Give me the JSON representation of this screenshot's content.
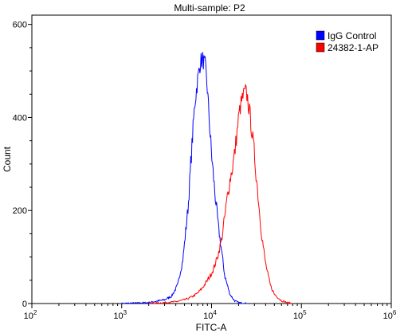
{
  "chart_data": {
    "type": "line",
    "title": "Multi-sample: P2",
    "xlabel": "FITC-A",
    "ylabel": "Count",
    "x_scale": "log",
    "xlim": [
      100,
      1000000
    ],
    "ylim": [
      0,
      620
    ],
    "x_ticks": [
      {
        "base": "10",
        "exp": "2",
        "value": 100
      },
      {
        "base": "10",
        "exp": "3",
        "value": 1000
      },
      {
        "base": "10",
        "exp": "4",
        "value": 10000
      },
      {
        "base": "10",
        "exp": "5",
        "value": 100000
      },
      {
        "base": "10",
        "exp": "6",
        "value": 1000000
      }
    ],
    "y_ticks": [
      {
        "label": "0",
        "value": 0
      },
      {
        "label": "200",
        "value": 200
      },
      {
        "label": "400",
        "value": 400
      },
      {
        "label": "600",
        "value": 600
      }
    ],
    "grid": false,
    "legend": "top-right",
    "series": [
      {
        "name": "IgG Control",
        "color": "#0000ff",
        "x": [
          1000,
          2000,
          3000,
          3600,
          4200,
          4800,
          5500,
          6000,
          6500,
          7000,
          7500,
          8000,
          8500,
          9000,
          9600,
          10200,
          11000,
          12000,
          13000,
          14000,
          16000,
          18000,
          20000,
          25000
        ],
        "y": [
          0,
          2,
          8,
          16,
          40,
          95,
          210,
          330,
          430,
          480,
          520,
          525,
          510,
          460,
          370,
          300,
          230,
          160,
          110,
          60,
          20,
          6,
          2,
          0
        ]
      },
      {
        "name": "24382-1-AP",
        "color": "#ff0000",
        "x": [
          2000,
          3000,
          4000,
          5000,
          6000,
          7000,
          8000,
          9000,
          10000,
          11000,
          12000,
          13000,
          14000,
          15000,
          16000,
          17000,
          18000,
          19000,
          20000,
          21000,
          22000,
          23000,
          24000,
          25000,
          27000,
          30000,
          33000,
          36000,
          40000,
          45000,
          50000,
          60000,
          70000,
          80000
        ],
        "y": [
          0,
          2,
          4,
          8,
          14,
          22,
          35,
          50,
          65,
          85,
          110,
          140,
          185,
          230,
          265,
          290,
          320,
          360,
          400,
          425,
          440,
          450,
          455,
          445,
          400,
          320,
          230,
          150,
          85,
          40,
          20,
          6,
          2,
          0
        ]
      }
    ]
  }
}
